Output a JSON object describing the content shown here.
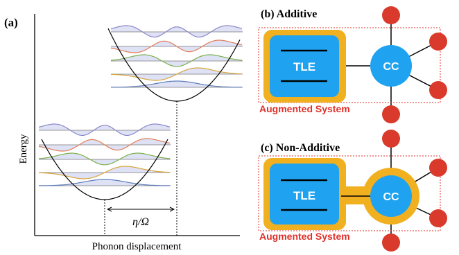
{
  "panel_a": {
    "label": "(a)",
    "ylabel": "Energy",
    "xlabel": "Phonon displacement",
    "shift_label": "η/Ω"
  },
  "panel_b": {
    "label": "(b) Additive",
    "tle_label": "TLE",
    "cc_label": "CC",
    "system_label": "Augmented System"
  },
  "panel_c": {
    "label": "(c) Non-Additive",
    "tle_label": "TLE",
    "cc_label": "CC",
    "system_label": "Augmented System"
  },
  "colors": {
    "tle_fill": "#1fa3f0",
    "tle_halo": "#f0b020",
    "cc_fill": "#1fa3f0",
    "bath_node": "#d93a2c",
    "system_border": "#e0302a",
    "system_text": "#e0302a",
    "level_1": "#8a86c8",
    "level_2": "#e27c56",
    "level_3": "#7ab04c",
    "level_4": "#d8a53a",
    "level_5": "#5b7cb8"
  }
}
